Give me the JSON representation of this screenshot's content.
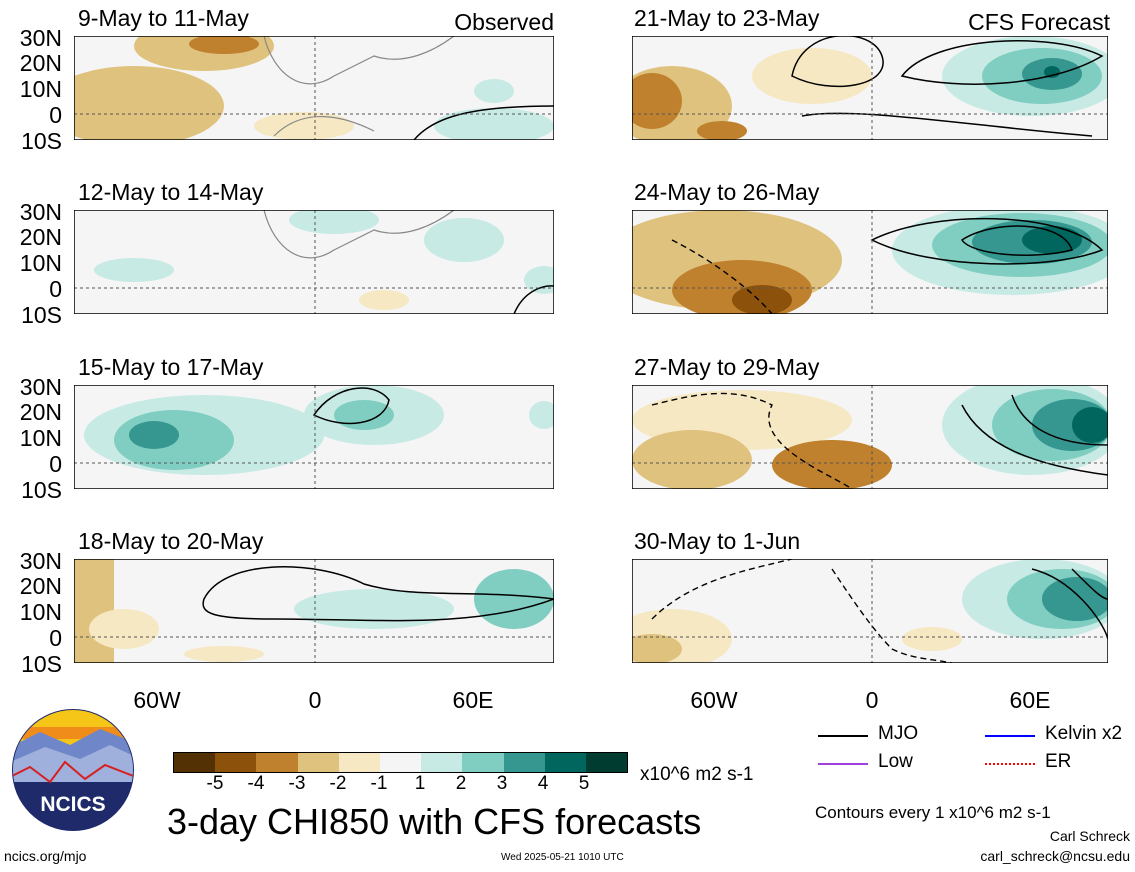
{
  "observed_tag": "Observed",
  "forecast_tag": "CFS Forecast",
  "lat_labels": [
    "30N",
    "20N",
    "10N",
    "0",
    "10S"
  ],
  "lon_labels": [
    "60W",
    "0",
    "60E"
  ],
  "panels": [
    {
      "title": "9-May to 11-May"
    },
    {
      "title": "12-May to 14-May"
    },
    {
      "title": "15-May to 17-May"
    },
    {
      "title": "18-May to 20-May"
    },
    {
      "title": "21-May to 23-May"
    },
    {
      "title": "24-May to 26-May"
    },
    {
      "title": "27-May to 29-May"
    },
    {
      "title": "30-May to 1-Jun"
    }
  ],
  "colorbar": {
    "labels": [
      "-5",
      "-4",
      "-3",
      "-2",
      "-1",
      "1",
      "2",
      "3",
      "4",
      "5"
    ],
    "colors": [
      "#543005",
      "#8c510a",
      "#bf812d",
      "#dfc27d",
      "#f6e8c3",
      "#f5f5f5",
      "#c7eae5",
      "#80cdc1",
      "#35978f",
      "#01665e",
      "#003c30"
    ],
    "unit": "x10^6 m2 s-1"
  },
  "legend": {
    "mjo": "MJO",
    "kelvin": "Kelvin x2",
    "low": "Low",
    "er": "ER",
    "colors": {
      "mjo": "#000000",
      "kelvin": "#0000ff",
      "low": "#a040e0",
      "er": "#ff0000"
    }
  },
  "main_title": "3-day CHI850 with CFS forecasts",
  "contour_note": "Contours every 1 x10^6 m2 s-1",
  "logo_text": "NCICS",
  "website": "ncics.org/mjo",
  "timestamp": "Wed 2025-05-21 1010 UTC",
  "author": "Carl Schreck",
  "email": "carl_schreck@ncsu.edu"
}
